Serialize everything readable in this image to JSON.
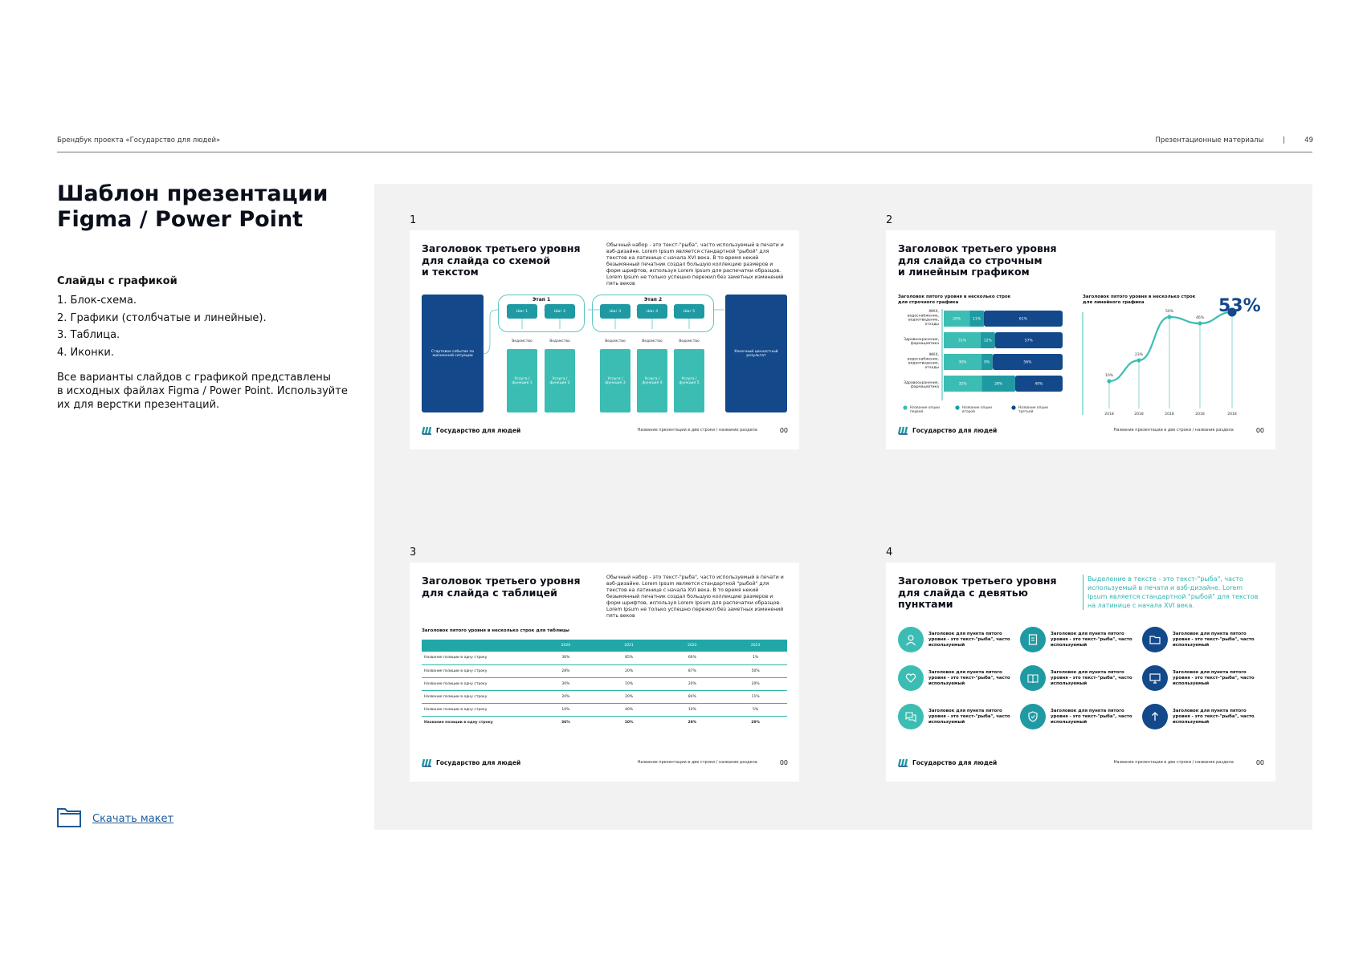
{
  "header": {
    "left": "Брендбук проекта «Государство для людей»",
    "section": "Презентационные материалы",
    "separator": "|",
    "page_number": "49"
  },
  "left": {
    "title": "Шаблон презентации\nFigma / Power Point",
    "section_title": "Слайды с графикой",
    "list": [
      "1.  Блок-схема.",
      "2. Графики (столбчатые и линейные).",
      "3. Таблица.",
      "4. Иконки."
    ],
    "description": "Все варианты слайдов с графикой представлены\nв исходных файлах Figma / Power Point. Используйте\nих для верстки презентаций.",
    "download_label": "Скачать макет"
  },
  "footer": {
    "logo_text": "Государство для людей",
    "caption": "Название презентации в две строки / название раздела",
    "page": "00"
  },
  "colors": {
    "navy": "#13498a",
    "teal": "#1f9aa3",
    "mint": "#3cbdb3",
    "gray_bg": "#f2f2f2"
  },
  "lorem": "Обычный набор - это текст-\"рыба\", часто используемый в печати и вэб-дизайне. Lorem Ipsum является стандартной \"рыбой\" для текстов на латинице с начала XVI века. В то время некий безымянный печатник создал большую коллекцию размеров и форм шрифтов, используя Lorem Ipsum для распечатки образцов. Lorem Ipsum не только успешно пережил без заметных изменений пять веков",
  "slides": [
    {
      "number": "1",
      "title": "Заголовок третьего уровня\nдля слайда со схемой\nи текстом",
      "start": "Стартовое событие по жизненной ситуации",
      "end": "Конечный ценностный результат",
      "stages": [
        "Этап 1",
        "Этап 2"
      ],
      "steps": [
        "Шаг 1",
        "Шаг 2",
        "Шаг 3",
        "Шаг 4",
        "Шаг 5"
      ],
      "agency": "Ведомство",
      "services": [
        "Услуга / функция 1",
        "Услуга / функция 2",
        "Услуга / функция 3",
        "Услуга / функция 4",
        "Услуга / функция 5"
      ]
    },
    {
      "number": "2",
      "title": "Заголовок третьего уровня\nдля слайда со строчным\nи линейным графиком",
      "bar_subtitle": "Заголовок пятого уровня в несколько строк\nдля строчного графика",
      "line_subtitle": "Заголовок пятого уровня в несколько строк\nдля линейного графика",
      "big_value": "53%"
    },
    {
      "number": "3",
      "title": "Заголовок третьего уровня\nдля слайда с таблицей",
      "table_subtitle": "Заголовок пятого уровня в несколько строк для таблицы",
      "table": {
        "headers": [
          "",
          "2020",
          "2021",
          "2022",
          "2023"
        ],
        "rows": [
          [
            "Название позиции в одну строку",
            "36%",
            "85%",
            "66%",
            "1%"
          ],
          [
            "Название позиции в одну строку",
            "28%",
            "20%",
            "87%",
            "50%"
          ],
          [
            "Название позиции в одну строку",
            "30%",
            "10%",
            "20%",
            "20%"
          ],
          [
            "Название позиции в одну строку",
            "20%",
            "20%",
            "84%",
            "11%"
          ],
          [
            "Название позиции в одну строку",
            "10%",
            "40%",
            "10%",
            "5%"
          ],
          [
            "Название позиции в одну строку",
            "36%",
            "10%",
            "28%",
            "20%"
          ]
        ]
      }
    },
    {
      "number": "4",
      "title": "Заголовок третьего уровня\nдля слайда с девятью\nпунктами",
      "highlight": "Выделение в тексте - это текст-\"рыба\", часто используемый в печати и вэб-дизайне. Lorem Ipsum является стандартной \"рыбой\" для текстов на латинице с начала XVI века.",
      "items": [
        {
          "text": "Заголовок для пункта пятого уровня - это текст-\"рыба\", часто используемый",
          "icon": "user-icon",
          "color": "#3cbdb3"
        },
        {
          "text": "Заголовок для пункта пятого уровня - это текст-\"рыба\", часто используемый",
          "icon": "document-icon",
          "color": "#1f9aa3"
        },
        {
          "text": "Заголовок для пункта пятого уровня - это текст-\"рыба\", часто используемый",
          "icon": "folder-icon",
          "color": "#13498a"
        },
        {
          "text": "Заголовок для пункта пятого уровня - это текст-\"рыба\", часто используемый",
          "icon": "heart-icon",
          "color": "#3cbdb3"
        },
        {
          "text": "Заголовок для пункта пятого уровня - это текст-\"рыба\", часто используемый",
          "icon": "book-icon",
          "color": "#1f9aa3"
        },
        {
          "text": "Заголовок для пункта пятого уровня - это текст-\"рыба\", часто используемый",
          "icon": "monitor-icon",
          "color": "#13498a"
        },
        {
          "text": "Заголовок для пункта пятого уровня - это текст-\"рыба\", часто используемый",
          "icon": "chat-icon",
          "color": "#3cbdb3"
        },
        {
          "text": "Заголовок для пункта пятого уровня - это текст-\"рыба\", часто используемый",
          "icon": "shield-icon",
          "color": "#1f9aa3"
        },
        {
          "text": "Заголовок для пункта пятого уровня - это текст-\"рыба\", часто используемый",
          "icon": "arrow-up-icon",
          "color": "#13498a"
        }
      ]
    }
  ],
  "chart_data": [
    {
      "type": "bar",
      "stacked": true,
      "orientation": "horizontal",
      "categories": [
        "ЖКХ, водоснабжение, водоотведение, отходы",
        "Здравоохранение, фармацевтика",
        "ЖКХ, водоснабжение, водоотведение, отходы",
        "Здравоохранение, фармацевтика"
      ],
      "series": [
        {
          "name": "Название опции первой",
          "values": [
            20,
            31,
            30,
            32
          ],
          "labels": [
            "20%",
            "31%",
            "30%",
            "32%"
          ],
          "color": "#3cbdb3"
        },
        {
          "name": "Название опции второй",
          "values": [
            11,
            12,
            9,
            28
          ],
          "labels": [
            "11%",
            "12%",
            "9%",
            "28%"
          ],
          "color": "#1f9aa3"
        },
        {
          "name": "Название опции третьей",
          "values": [
            61,
            57,
            56,
            40
          ],
          "labels": [
            "61%",
            "57%",
            "56%",
            "40%"
          ],
          "color": "#13498a"
        }
      ],
      "legend": [
        "Название опции первой",
        "Название опции второй",
        "Название опции третьей"
      ],
      "legend_position": "bottom"
    },
    {
      "type": "line",
      "x": [
        "2018",
        "2018",
        "2018",
        "2018",
        "2018"
      ],
      "values": [
        10,
        23,
        50,
        46,
        53
      ],
      "labels": [
        "10%",
        "23%",
        "50%",
        "46%",
        "53%"
      ],
      "ylim": [
        0,
        60
      ]
    }
  ]
}
